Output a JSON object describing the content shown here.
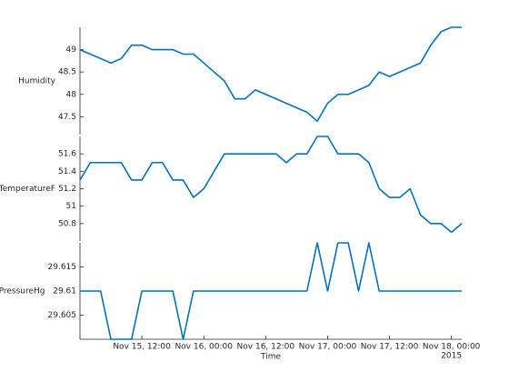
{
  "chart_data": {
    "type": "line",
    "x": [
      "2015-11-15T00:00",
      "2015-11-15T02:00",
      "2015-11-15T04:00",
      "2015-11-15T06:00",
      "2015-11-15T08:00",
      "2015-11-15T10:00",
      "2015-11-15T12:00",
      "2015-11-15T14:00",
      "2015-11-15T16:00",
      "2015-11-15T18:00",
      "2015-11-15T20:00",
      "2015-11-15T22:00",
      "2015-11-16T00:00",
      "2015-11-16T02:00",
      "2015-11-16T04:00",
      "2015-11-16T06:00",
      "2015-11-16T08:00",
      "2015-11-16T10:00",
      "2015-11-16T12:00",
      "2015-11-16T14:00",
      "2015-11-16T16:00",
      "2015-11-16T18:00",
      "2015-11-16T20:00",
      "2015-11-16T22:00",
      "2015-11-17T00:00",
      "2015-11-17T02:00",
      "2015-11-17T04:00",
      "2015-11-17T06:00",
      "2015-11-17T08:00",
      "2015-11-17T10:00",
      "2015-11-17T12:00",
      "2015-11-17T14:00",
      "2015-11-17T16:00",
      "2015-11-17T18:00",
      "2015-11-17T20:00",
      "2015-11-17T22:00",
      "2015-11-18T00:00",
      "2015-11-18T02:00"
    ],
    "xlim": [
      "2015-11-15T00:00",
      "2015-11-18T02:00"
    ],
    "xticks": [
      {
        "value": "2015-11-15T12:00",
        "label": "Nov 15, 12:00"
      },
      {
        "value": "2015-11-16T00:00",
        "label": "Nov 16, 00:00"
      },
      {
        "value": "2015-11-16T12:00",
        "label": "Nov 16, 12:00"
      },
      {
        "value": "2015-11-17T00:00",
        "label": "Nov 17, 00:00"
      },
      {
        "value": "2015-11-17T12:00",
        "label": "Nov 17, 12:00"
      },
      {
        "value": "2015-11-18T00:00",
        "label": "Nov 18, 00:00"
      }
    ],
    "xtick_secondary_label": "2015",
    "xlabel": "Time",
    "series": [
      {
        "name": "Humidity",
        "color": "#0072bd",
        "ylim": [
          47.1,
          49.5
        ],
        "yticks": [
          47.5,
          48,
          48.5,
          49
        ],
        "values": [
          49,
          48.9,
          48.8,
          48.7,
          48.8,
          49.1,
          49.1,
          49,
          49,
          49,
          48.9,
          48.9,
          48.7,
          48.5,
          48.3,
          47.9,
          47.9,
          48.1,
          48,
          47.9,
          47.8,
          47.7,
          47.6,
          47.4,
          47.8,
          48,
          48,
          48.1,
          48.2,
          48.5,
          48.4,
          48.5,
          48.6,
          48.7,
          49.1,
          49.4,
          49.5,
          49.5
        ]
      },
      {
        "name": "TemperatureF",
        "color": "#0072bd",
        "ylim": [
          50.6,
          51.8
        ],
        "yticks": [
          50.8,
          51,
          51.2,
          51.4,
          51.6
        ],
        "values": [
          51.3,
          51.5,
          51.5,
          51.5,
          51.5,
          51.3,
          51.3,
          51.5,
          51.5,
          51.3,
          51.3,
          51.1,
          51.2,
          51.4,
          51.6,
          51.6,
          51.6,
          51.6,
          51.6,
          51.6,
          51.5,
          51.6,
          51.6,
          51.8,
          51.8,
          51.6,
          51.6,
          51.6,
          51.5,
          51.2,
          51.1,
          51.1,
          51.2,
          50.9,
          50.8,
          50.8,
          50.7,
          50.8
        ]
      },
      {
        "name": "PressureHg",
        "color": "#0072bd",
        "ylim": [
          29.6,
          29.62
        ],
        "yticks": [
          29.605,
          29.61,
          29.615
        ],
        "values": [
          29.61,
          29.61,
          29.61,
          29.6,
          29.6,
          29.6,
          29.61,
          29.61,
          29.61,
          29.61,
          29.6,
          29.61,
          29.61,
          29.61,
          29.61,
          29.61,
          29.61,
          29.61,
          29.61,
          29.61,
          29.61,
          29.61,
          29.61,
          29.62,
          29.61,
          29.62,
          29.62,
          29.61,
          29.62,
          29.61,
          29.61,
          29.61,
          29.61,
          29.61,
          29.61,
          29.61,
          29.61,
          29.61
        ]
      }
    ]
  }
}
